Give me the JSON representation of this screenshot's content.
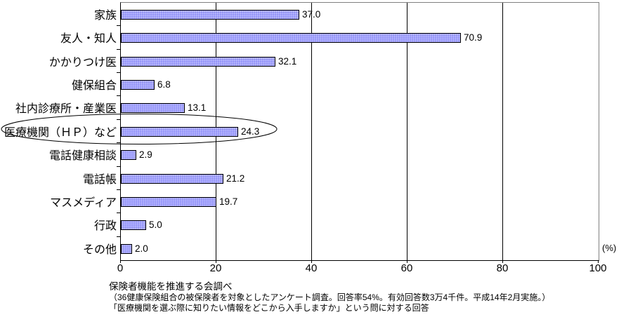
{
  "chart_data": {
    "type": "bar",
    "orientation": "horizontal",
    "title": "",
    "categories": [
      "家族",
      "友人・知人",
      "かかりつけ医",
      "健保組合",
      "社内診療所・産業医",
      "医療機関（ＨＰ）など",
      "電話健康相談",
      "電話帳",
      "マスメディア",
      "行政",
      "その他"
    ],
    "values": [
      37.0,
      70.9,
      32.1,
      6.8,
      13.1,
      24.3,
      2.9,
      21.2,
      19.7,
      5.0,
      2.0
    ],
    "value_labels": [
      "37.0",
      "70.9",
      "32.1",
      "6.8",
      "13.1",
      "24.3",
      "2.9",
      "21.2",
      "19.7",
      "5.0",
      "2.0"
    ],
    "xlim": [
      0,
      100
    ],
    "x_ticks": [
      "0",
      "20",
      "40",
      "60",
      "80",
      "100"
    ],
    "x_tick_values": [
      0,
      20,
      40,
      60,
      80,
      100
    ],
    "unit_label": "(%)",
    "grid": "vertical-major",
    "legend_position": "none",
    "highlight": {
      "category": "医療機関（ＨＰ）など",
      "shape": "ellipse"
    }
  },
  "colors": {
    "bar_fill": "#9999FF",
    "bar_border": "#000000",
    "plot_border": "#808080",
    "axis_line": "#000000",
    "gridline": "#000000",
    "background": "#FFFFFF"
  },
  "footer": {
    "line1": "保険者機能を推進する会調べ",
    "line2": "（36健康保険組合の被保険者を対象としたアンケート調査。回答率54%。有効回答数3万4千件。平成14年2月実施。）",
    "line3": "「医療機関を選ぶ際に知りたい情報をどこから入手しますか」という問に対する回答"
  }
}
